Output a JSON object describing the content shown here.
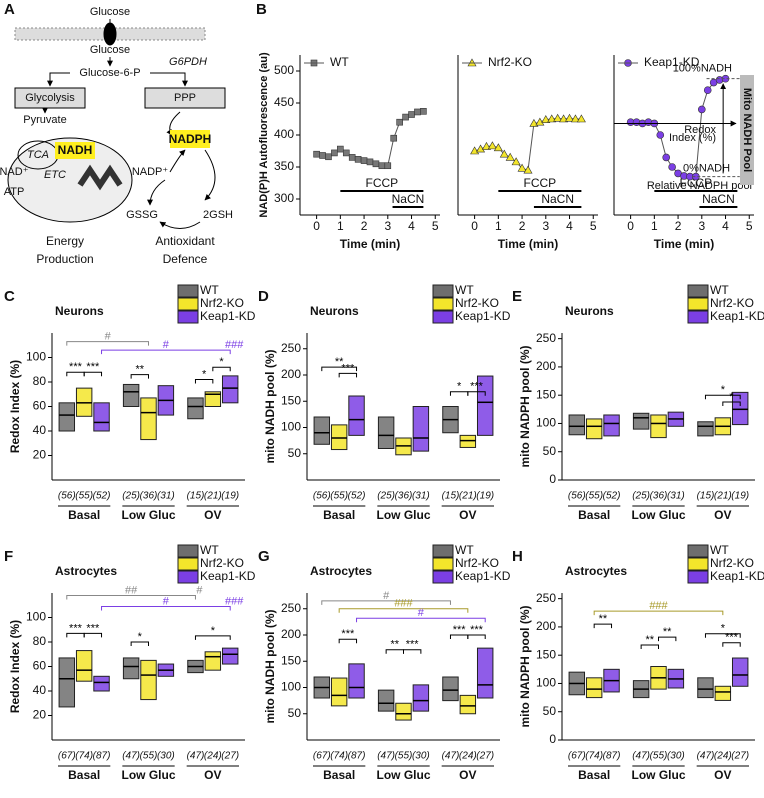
{
  "panel_labels": [
    "A",
    "B",
    "C",
    "D",
    "E",
    "F",
    "G",
    "H"
  ],
  "diagram": {
    "labels": [
      "Glucose",
      "Glucose",
      "Glucose-6-P",
      "G6PDH",
      "Glycolysis",
      "PPP",
      "Pyruvate",
      "NADPH",
      "TCA",
      "NADH",
      "NAD⁺",
      "ETC",
      "ATP",
      "NADP⁺",
      "GSSG",
      "2GSH",
      "Energy",
      "Production",
      "Antioxidant",
      "Defence"
    ]
  },
  "chart_data": [
    {
      "type": "line",
      "ylabel": "NAD(P)H Autofluorescence (au)",
      "xlabel": "Time (min)",
      "x": [
        0,
        0.25,
        0.5,
        0.75,
        1,
        1.25,
        1.5,
        1.75,
        2,
        2.25,
        2.5,
        2.75,
        3,
        3.25,
        3.5,
        3.75,
        4,
        4.25,
        4.5
      ],
      "series": [
        {
          "name": "WT",
          "color": "#777777",
          "marker": "square",
          "values": [
            370,
            368,
            366,
            372,
            378,
            372,
            365,
            362,
            360,
            358,
            355,
            352,
            352,
            395,
            420,
            428,
            432,
            436,
            437
          ]
        }
      ],
      "xlim": [
        -0.7,
        5.2
      ],
      "xticks": [
        0,
        1,
        2,
        3,
        4,
        5
      ],
      "ylim": [
        275,
        525
      ],
      "yticks": [
        300,
        350,
        400,
        450,
        500
      ],
      "treatments": [
        {
          "label": "FCCP",
          "start": 1,
          "end": 4.5
        },
        {
          "label": "NaCN",
          "start": 3.2,
          "end": 4.5
        }
      ]
    },
    {
      "type": "line",
      "xlabel": "Time (min)",
      "x": [
        0,
        0.25,
        0.5,
        0.75,
        1,
        1.25,
        1.5,
        1.75,
        2,
        2.25,
        2.5,
        2.75,
        3,
        3.25,
        3.5,
        3.75,
        4,
        4.25,
        4.5
      ],
      "series": [
        {
          "name": "Nrf2-KO",
          "color": "#f3e52b",
          "marker": "triangle",
          "values": [
            375,
            378,
            382,
            383,
            380,
            370,
            365,
            358,
            348,
            345,
            418,
            420,
            424,
            425,
            426,
            425,
            426,
            425,
            425
          ]
        }
      ],
      "xlim": [
        -0.7,
        5.2
      ],
      "xticks": [
        0,
        1,
        2,
        3,
        4,
        5
      ],
      "ylim": [
        275,
        525
      ],
      "treatments": [
        {
          "label": "FCCP",
          "start": 1,
          "end": 4.5
        },
        {
          "label": "NaCN",
          "start": 2.5,
          "end": 4.5
        }
      ]
    },
    {
      "type": "line",
      "xlabel": "Time (min)",
      "x": [
        0,
        0.25,
        0.5,
        0.75,
        1,
        1.25,
        1.5,
        1.75,
        2,
        2.25,
        2.5,
        2.75,
        3,
        3.25,
        3.5,
        3.75,
        4,
        4.25,
        4.5
      ],
      "series": [
        {
          "name": "Keap1-KD",
          "color": "#7b3fe4",
          "marker": "circle",
          "values": [
            420,
            420,
            418,
            420,
            418,
            400,
            365,
            350,
            340,
            336,
            335,
            335,
            440,
            470,
            482,
            486,
            488,
            null,
            null
          ]
        }
      ],
      "xlim": [
        -0.7,
        5.2
      ],
      "xticks": [
        0,
        1,
        2,
        3,
        4,
        5
      ],
      "ylim": [
        275,
        525
      ],
      "treatments": [
        {
          "label": "FCCP",
          "start": 1,
          "end": 4.5
        },
        {
          "label": "NaCN",
          "start": 2.9,
          "end": 4.5
        }
      ],
      "annotations": [
        "100%NADH",
        "0%NADH",
        "Redox",
        "Index (%)",
        "Relative NADPH pool",
        "Mito NADH Pool"
      ]
    },
    {
      "type": "box",
      "title": "Neurons",
      "ylabel": "Redox Index (%)",
      "categories": [
        "Basal",
        "Low Gluc",
        "OV"
      ],
      "ylim": [
        0,
        120
      ],
      "yticks": [
        20,
        40,
        60,
        80,
        100
      ],
      "series": [
        {
          "name": "WT",
          "color": "#6e6e6e",
          "q1": [
            40,
            60,
            50
          ],
          "median": [
            53,
            72,
            60
          ],
          "q3": [
            63,
            78,
            67
          ],
          "counts": [
            "(56)",
            "(25)",
            "(15)"
          ]
        },
        {
          "name": "Nrf2-KO",
          "color": "#f3e52b",
          "q1": [
            52,
            33,
            60
          ],
          "median": [
            63,
            55,
            70
          ],
          "q3": [
            75,
            67,
            72
          ],
          "counts": [
            "(55)",
            "(36)",
            "(21)"
          ]
        },
        {
          "name": "Keap1-KD",
          "color": "#7b3fe4",
          "q1": [
            40,
            53,
            63
          ],
          "median": [
            47,
            65,
            75
          ],
          "q3": [
            63,
            77,
            85
          ],
          "counts": [
            "(52)",
            "(31)",
            "(19)"
          ]
        }
      ],
      "annotations": [
        {
          "text": "#",
          "color": "#888888"
        },
        {
          "text": "#",
          "color": "#7b3fe4"
        },
        {
          "text": "###",
          "color": "#7b3fe4"
        },
        {
          "text": "***",
          "color": "#000000"
        },
        {
          "text": "***",
          "color": "#000000"
        },
        {
          "text": "**",
          "color": "#000000"
        },
        {
          "text": "*",
          "color": "#000000"
        },
        {
          "text": "*",
          "color": "#000000"
        }
      ]
    },
    {
      "type": "box",
      "title": "Neurons",
      "ylabel": "mito NADH pool (%)",
      "categories": [
        "Basal",
        "Low Gluc",
        "OV"
      ],
      "ylim": [
        0,
        280
      ],
      "yticks": [
        50,
        100,
        150,
        200,
        250
      ],
      "series": [
        {
          "name": "WT",
          "color": "#6e6e6e",
          "q1": [
            68,
            60,
            90
          ],
          "median": [
            90,
            85,
            115
          ],
          "q3": [
            120,
            120,
            140
          ],
          "counts": [
            "(56)",
            "(25)",
            "(15)"
          ]
        },
        {
          "name": "Nrf2-KO",
          "color": "#f3e52b",
          "q1": [
            58,
            48,
            62
          ],
          "median": [
            80,
            65,
            75
          ],
          "q3": [
            105,
            80,
            85
          ],
          "counts": [
            "(55)",
            "(36)",
            "(21)"
          ]
        },
        {
          "name": "Keap1-KD",
          "color": "#7b3fe4",
          "q1": [
            85,
            55,
            85
          ],
          "median": [
            115,
            80,
            148
          ],
          "q3": [
            160,
            140,
            198
          ],
          "counts": [
            "(52)",
            "(31)",
            "(19)"
          ]
        }
      ],
      "annotations": [
        {
          "text": "**",
          "color": "#000000"
        },
        {
          "text": "***",
          "color": "#000000"
        },
        {
          "text": "*",
          "color": "#000000"
        },
        {
          "text": "***",
          "color": "#000000"
        }
      ]
    },
    {
      "type": "box",
      "title": "Neurons",
      "ylabel": "mito NADPH pool (%)",
      "categories": [
        "Basal",
        "Low Gluc",
        "OV"
      ],
      "ylim": [
        0,
        260
      ],
      "yticks": [
        0,
        50,
        100,
        150,
        200,
        250
      ],
      "series": [
        {
          "name": "WT",
          "color": "#6e6e6e",
          "q1": [
            80,
            90,
            78
          ],
          "median": [
            95,
            110,
            95
          ],
          "q3": [
            115,
            118,
            103
          ],
          "counts": [
            "(56)",
            "(25)",
            "(15)"
          ]
        },
        {
          "name": "Nrf2-KO",
          "color": "#f3e52b",
          "q1": [
            73,
            75,
            80
          ],
          "median": [
            95,
            100,
            95
          ],
          "q3": [
            108,
            115,
            110
          ],
          "counts": [
            "(55)",
            "(36)",
            "(21)"
          ]
        },
        {
          "name": "Keap1-KD",
          "color": "#7b3fe4",
          "q1": [
            78,
            95,
            98
          ],
          "median": [
            100,
            108,
            125
          ],
          "q3": [
            115,
            120,
            155
          ],
          "counts": [
            "(52)",
            "(31)",
            "(19)"
          ]
        }
      ],
      "annotations": [
        {
          "text": "*",
          "color": "#000000"
        },
        {
          "text": "*",
          "color": "#000000"
        }
      ]
    },
    {
      "type": "box",
      "title": "Astrocytes",
      "ylabel": "Redox Index (%)",
      "categories": [
        "Basal",
        "Low Gluc",
        "OV"
      ],
      "ylim": [
        0,
        120
      ],
      "yticks": [
        20,
        40,
        60,
        80,
        100
      ],
      "series": [
        {
          "name": "WT",
          "color": "#6e6e6e",
          "q1": [
            27,
            50,
            55
          ],
          "median": [
            50,
            60,
            60
          ],
          "q3": [
            67,
            67,
            65
          ],
          "counts": [
            "(67)",
            "(47)",
            "(47)"
          ]
        },
        {
          "name": "Nrf2-KO",
          "color": "#f3e52b",
          "q1": [
            48,
            33,
            57
          ],
          "median": [
            57,
            53,
            68
          ],
          "q3": [
            73,
            65,
            72
          ],
          "counts": [
            "(74)",
            "(55)",
            "(24)"
          ]
        },
        {
          "name": "Keap1-KD",
          "color": "#7b3fe4",
          "q1": [
            40,
            52,
            62
          ],
          "median": [
            47,
            57,
            70
          ],
          "q3": [
            52,
            62,
            75
          ],
          "counts": [
            "(87)",
            "(30)",
            "(27)"
          ]
        }
      ],
      "annotations": [
        {
          "text": "##",
          "color": "#888888"
        },
        {
          "text": "#",
          "color": "#888888"
        },
        {
          "text": "#",
          "color": "#7b3fe4"
        },
        {
          "text": "###",
          "color": "#7b3fe4"
        },
        {
          "text": "***",
          "color": "#000000"
        },
        {
          "text": "***",
          "color": "#000000"
        },
        {
          "text": "*",
          "color": "#000000"
        },
        {
          "text": "*",
          "color": "#000000"
        }
      ]
    },
    {
      "type": "box",
      "title": "Astrocytes",
      "ylabel": "mito NADH pool (%)",
      "categories": [
        "Basal",
        "Low Gluc",
        "OV"
      ],
      "ylim": [
        0,
        280
      ],
      "yticks": [
        50,
        100,
        150,
        200,
        250
      ],
      "series": [
        {
          "name": "WT",
          "color": "#6e6e6e",
          "q1": [
            80,
            55,
            75
          ],
          "median": [
            100,
            70,
            95
          ],
          "q3": [
            120,
            95,
            120
          ],
          "counts": [
            "(67)",
            "(47)",
            "(47)"
          ]
        },
        {
          "name": "Nrf2-KO",
          "color": "#f3e52b",
          "q1": [
            65,
            38,
            50
          ],
          "median": [
            85,
            50,
            65
          ],
          "q3": [
            118,
            70,
            85
          ],
          "counts": [
            "(74)",
            "(55)",
            "(24)"
          ]
        },
        {
          "name": "Keap1-KD",
          "color": "#7b3fe4",
          "q1": [
            80,
            55,
            80
          ],
          "median": [
            100,
            75,
            105
          ],
          "q3": [
            145,
            105,
            175
          ],
          "counts": [
            "(87)",
            "(30)",
            "(27)"
          ]
        }
      ],
      "annotations": [
        {
          "text": "#",
          "color": "#888888"
        },
        {
          "text": "###",
          "color": "#a89a2a"
        },
        {
          "text": "#",
          "color": "#7b3fe4"
        },
        {
          "text": "***",
          "color": "#000000"
        },
        {
          "text": "**",
          "color": "#000000"
        },
        {
          "text": "***",
          "color": "#000000"
        },
        {
          "text": "***",
          "color": "#000000"
        },
        {
          "text": "***",
          "color": "#000000"
        }
      ]
    },
    {
      "type": "box",
      "title": "Astrocytes",
      "ylabel": "mito NADPH pool (%)",
      "categories": [
        "Basal",
        "Low Gluc",
        "OV"
      ],
      "ylim": [
        0,
        260
      ],
      "yticks": [
        0,
        50,
        100,
        150,
        200,
        250
      ],
      "series": [
        {
          "name": "WT",
          "color": "#6e6e6e",
          "q1": [
            80,
            75,
            75
          ],
          "median": [
            100,
            90,
            90
          ],
          "q3": [
            120,
            105,
            110
          ],
          "counts": [
            "(67)",
            "(47)",
            "(47)"
          ]
        },
        {
          "name": "Nrf2-KO",
          "color": "#f3e52b",
          "q1": [
            75,
            90,
            70
          ],
          "median": [
            90,
            110,
            85
          ],
          "q3": [
            110,
            130,
            95
          ],
          "counts": [
            "(74)",
            "(55)",
            "(24)"
          ]
        },
        {
          "name": "Keap1-KD",
          "color": "#7b3fe4",
          "q1": [
            85,
            92,
            95
          ],
          "median": [
            105,
            108,
            115
          ],
          "q3": [
            125,
            125,
            145
          ],
          "counts": [
            "(87)",
            "(30)",
            "(27)"
          ]
        }
      ],
      "annotations": [
        {
          "text": "###",
          "color": "#a89a2a"
        },
        {
          "text": "**",
          "color": "#000000"
        },
        {
          "text": "**",
          "color": "#000000"
        },
        {
          "text": "**",
          "color": "#000000"
        },
        {
          "text": "*",
          "color": "#000000"
        },
        {
          "text": "***",
          "color": "#000000"
        }
      ]
    }
  ]
}
